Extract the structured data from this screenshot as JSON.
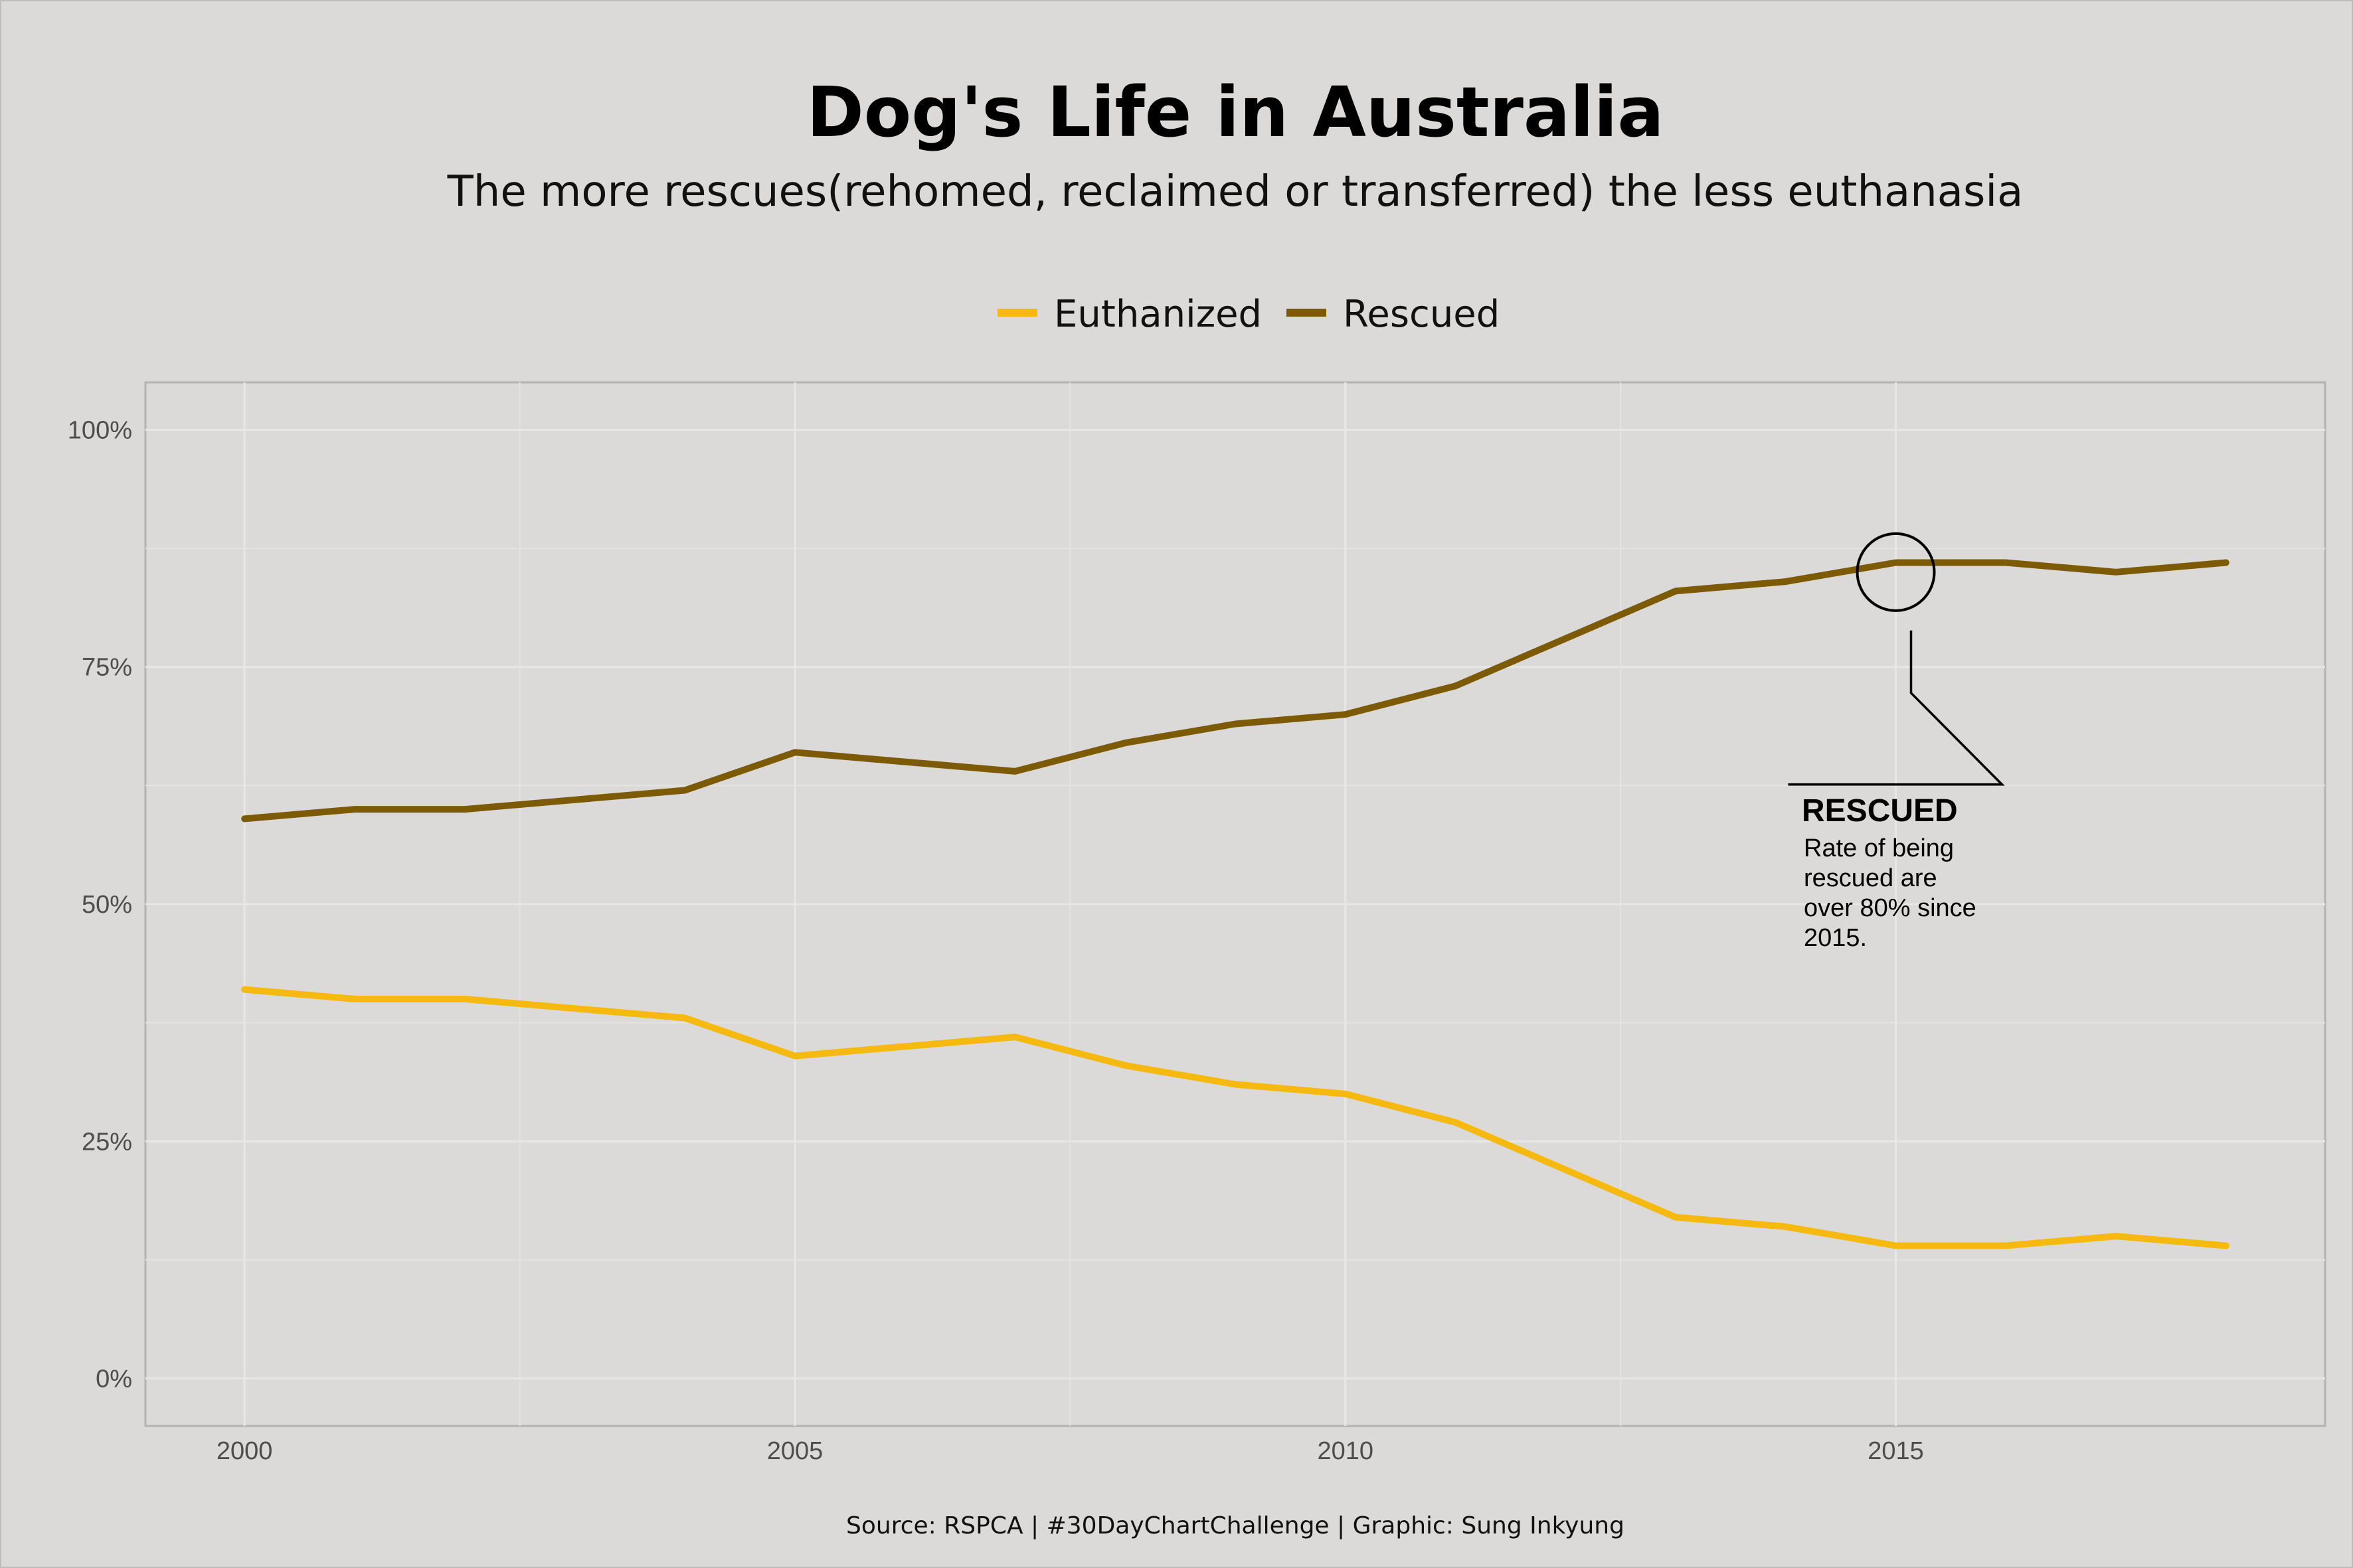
{
  "chart_data": {
    "type": "line",
    "title": "Dog's Life in Australia",
    "subtitle": "The more rescues(rehomed, reclaimed or transferred) the less euthanasia",
    "caption": "Source: RSPCA | #30DayChartChallenge | Graphic: Sung Inkyung",
    "x": [
      2000,
      2001,
      2002,
      2003,
      2004,
      2005,
      2006,
      2007,
      2008,
      2009,
      2010,
      2011,
      2012,
      2013,
      2014,
      2015,
      2016,
      2017,
      2018
    ],
    "series": [
      {
        "name": "Euthanized",
        "color": "#f5b90f",
        "values": [
          41,
          40,
          40,
          39,
          38,
          34,
          35,
          36,
          33,
          31,
          30,
          27,
          22,
          17,
          16,
          14,
          14,
          15,
          14
        ]
      },
      {
        "name": "Rescued",
        "color": "#7c5a06",
        "values": [
          59,
          60,
          60,
          61,
          62,
          66,
          65,
          64,
          67,
          69,
          70,
          73,
          78,
          83,
          84,
          86,
          86,
          85,
          86
        ]
      }
    ],
    "xlim": [
      1999.1,
      2018.9
    ],
    "ylim": [
      -5,
      105
    ],
    "x_ticks": [
      2000,
      2005,
      2010,
      2015
    ],
    "x_tick_labels": [
      "2000",
      "2005",
      "2010",
      "2015"
    ],
    "y_ticks": [
      0,
      25,
      50,
      75,
      100
    ],
    "y_tick_labels": [
      "0%",
      "25%",
      "50%",
      "75%",
      "100%"
    ],
    "grid": true,
    "legend_position": "top",
    "annotation": {
      "title": "RESCUED",
      "lines": [
        "Rate of being",
        "rescued are",
        "over 80% since",
        "2015."
      ],
      "target_x": 2015,
      "target_y": 85
    }
  }
}
